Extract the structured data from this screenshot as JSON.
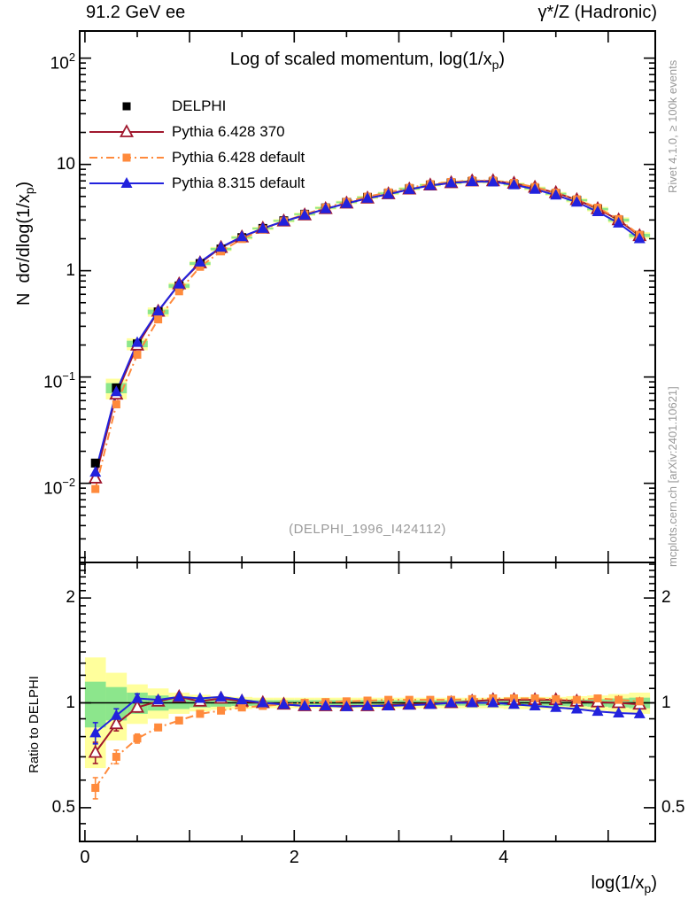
{
  "header": {
    "left": "91.2 GeV ee",
    "right": "γ*/Z (Hadronic)"
  },
  "title": {
    "main": "Log of scaled momentum, log(1/x",
    "sub": "p",
    "end": ")"
  },
  "watermark": "(DELPHI_1996_I424112)",
  "side_notes": {
    "top_right": "Rivet 4.1.0, ≥ 100k events",
    "bottom_right": "mcplots.cern.ch [arXiv:2401.10621]"
  },
  "axes": {
    "y_main": {
      "label_prefix": "N  dσ/dlog(1/x",
      "label_sub": "p",
      "label_end": ")",
      "ticks": [
        {
          "mantissa": "10",
          "exp": "2",
          "value": 100
        },
        {
          "mantissa": "10",
          "exp": "",
          "value": 10
        },
        {
          "mantissa": "1",
          "exp": "",
          "value": 1
        },
        {
          "mantissa": "10",
          "exp": "−1",
          "value": 0.1
        },
        {
          "mantissa": "10",
          "exp": "−2",
          "value": 0.01
        }
      ]
    },
    "y_ratio": {
      "label": "Ratio to DELPHI",
      "ticks": [
        {
          "label": "2",
          "value": 2
        },
        {
          "label": "1",
          "value": 1
        },
        {
          "label": "0.5",
          "value": 0.5
        }
      ]
    },
    "x": {
      "label_prefix": "log(1/x",
      "label_sub": "p",
      "label_end": ")",
      "ticks": [
        {
          "label": "0",
          "value": 0
        },
        {
          "label": "2",
          "value": 2
        },
        {
          "label": "4",
          "value": 4
        }
      ]
    }
  },
  "legend": [
    {
      "label": "DELPHI",
      "marker": "filled-square",
      "line": "none",
      "color": "#000000"
    },
    {
      "label": "Pythia 6.428 370",
      "marker": "open-triangle",
      "line": "solid",
      "color": "#a0182e"
    },
    {
      "label": "Pythia 6.428 default",
      "marker": "filled-square",
      "line": "dashdot",
      "color": "#ff8a3c"
    },
    {
      "label": "Pythia 8.315 default",
      "marker": "filled-triangle",
      "line": "solid",
      "color": "#2222dd"
    }
  ],
  "colors": {
    "band_yellow": "#ffff9c",
    "band_green": "#8ce68c",
    "frame": "#000000",
    "note_gray": "#9a9a9a"
  },
  "chart_data": {
    "type": "line",
    "title": "Log of scaled momentum, log(1/x_p)",
    "xlabel": "log(1/x_p)",
    "ylabel_main": "N dσ/dlog(1/x_p)",
    "ylabel_ratio": "Ratio to DELPHI",
    "x_range": [
      -0.05,
      5.45
    ],
    "y_range_main": [
      0.0018,
      180
    ],
    "y_range_ratio": [
      0.4,
      2.53
    ],
    "y_scale": "log",
    "bin_half_width": 0.1,
    "x": [
      0.1,
      0.3,
      0.5,
      0.7,
      0.9,
      1.1,
      1.3,
      1.5,
      1.7,
      1.9,
      2.1,
      2.3,
      2.5,
      2.7,
      2.9,
      3.1,
      3.3,
      3.5,
      3.7,
      3.9,
      4.1,
      4.3,
      4.5,
      4.7,
      4.9,
      5.1,
      5.3
    ],
    "delphi": [
      0.0155,
      0.079,
      0.205,
      0.41,
      0.72,
      1.17,
      1.6,
      2.05,
      2.5,
      2.95,
      3.4,
      3.9,
      4.4,
      4.9,
      5.35,
      5.9,
      6.4,
      6.7,
      6.9,
      6.85,
      6.5,
      5.95,
      5.3,
      4.6,
      3.8,
      3.0,
      2.15
    ],
    "series": [
      {
        "name": "Pythia 6.428 370",
        "color": "#a0182e",
        "line": "solid",
        "marker": "open-triangle",
        "ratio": [
          0.72,
          0.87,
          0.97,
          1.01,
          1.04,
          1.01,
          1.03,
          1.01,
          1.0,
          0.99,
          0.98,
          0.98,
          0.98,
          0.98,
          0.985,
          0.99,
          0.995,
          1.0,
          1.01,
          1.02,
          1.02,
          1.02,
          1.02,
          1.01,
          1.005,
          1.0,
          0.99
        ]
      },
      {
        "name": "Pythia 6.428 default",
        "color": "#ff8a3c",
        "line": "dashdot",
        "marker": "filled-square",
        "ratio": [
          0.57,
          0.7,
          0.79,
          0.85,
          0.89,
          0.93,
          0.95,
          0.97,
          0.98,
          0.99,
          1.0,
          1.005,
          1.01,
          1.015,
          1.02,
          1.02,
          1.02,
          1.02,
          1.025,
          1.03,
          1.03,
          1.03,
          1.025,
          1.02,
          1.03,
          1.02,
          1.01
        ]
      },
      {
        "name": "Pythia 8.315 default",
        "color": "#2222dd",
        "line": "solid",
        "marker": "filled-triangle",
        "ratio": [
          0.82,
          0.92,
          1.03,
          1.02,
          1.04,
          1.03,
          1.04,
          1.02,
          1.0,
          0.99,
          0.98,
          0.98,
          0.975,
          0.98,
          0.98,
          0.985,
          0.99,
          1.0,
          1.0,
          1.0,
          0.99,
          0.98,
          0.97,
          0.96,
          0.945,
          0.935,
          0.93
        ]
      }
    ],
    "band_yellow": [
      0.35,
      0.22,
      0.13,
      0.1,
      0.07,
      0.055,
      0.045,
      0.04,
      0.035,
      0.035,
      0.035,
      0.035,
      0.035,
      0.035,
      0.035,
      0.035,
      0.035,
      0.035,
      0.035,
      0.035,
      0.04,
      0.04,
      0.04,
      0.045,
      0.05,
      0.06,
      0.07
    ],
    "band_green": [
      0.15,
      0.11,
      0.07,
      0.05,
      0.04,
      0.03,
      0.025,
      0.02,
      0.018,
      0.018,
      0.018,
      0.018,
      0.018,
      0.018,
      0.018,
      0.018,
      0.018,
      0.018,
      0.018,
      0.018,
      0.02,
      0.02,
      0.02,
      0.022,
      0.025,
      0.03,
      0.035
    ],
    "ratio_error_frac_first_bins": [
      0.07,
      0.045,
      0.03,
      0.02
    ]
  }
}
